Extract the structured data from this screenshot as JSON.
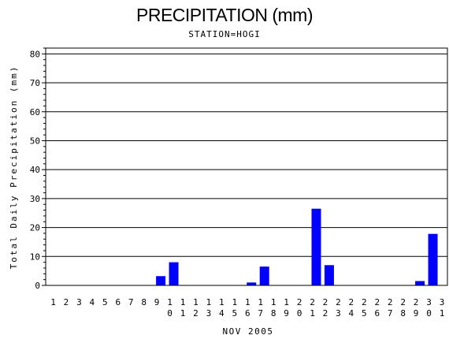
{
  "chart_data": {
    "type": "bar",
    "title": "PRECIPITATION (mm)",
    "subtitle": "STATION=HOGI",
    "xlabel": "NOV 2005",
    "ylabel": "Total Daily Precipitation (mm)",
    "ylim": [
      0,
      82
    ],
    "yticks": [
      0,
      10,
      20,
      30,
      40,
      50,
      60,
      70,
      80
    ],
    "grid": true,
    "bar_color": "#0000ff",
    "categories": [
      "1",
      "2",
      "3",
      "4",
      "5",
      "6",
      "7",
      "8",
      "9",
      "10",
      "11",
      "12",
      "13",
      "14",
      "15",
      "16",
      "17",
      "18",
      "19",
      "20",
      "21",
      "22",
      "23",
      "24",
      "25",
      "26",
      "27",
      "28",
      "29",
      "30",
      "31"
    ],
    "values": [
      0,
      0,
      0,
      0,
      0,
      0,
      0,
      0,
      3.2,
      8.0,
      0,
      0,
      0,
      0,
      0,
      1.0,
      6.5,
      0,
      0,
      0,
      26.5,
      7.0,
      0,
      0,
      0,
      0,
      0,
      0,
      1.5,
      17.8,
      0
    ]
  }
}
